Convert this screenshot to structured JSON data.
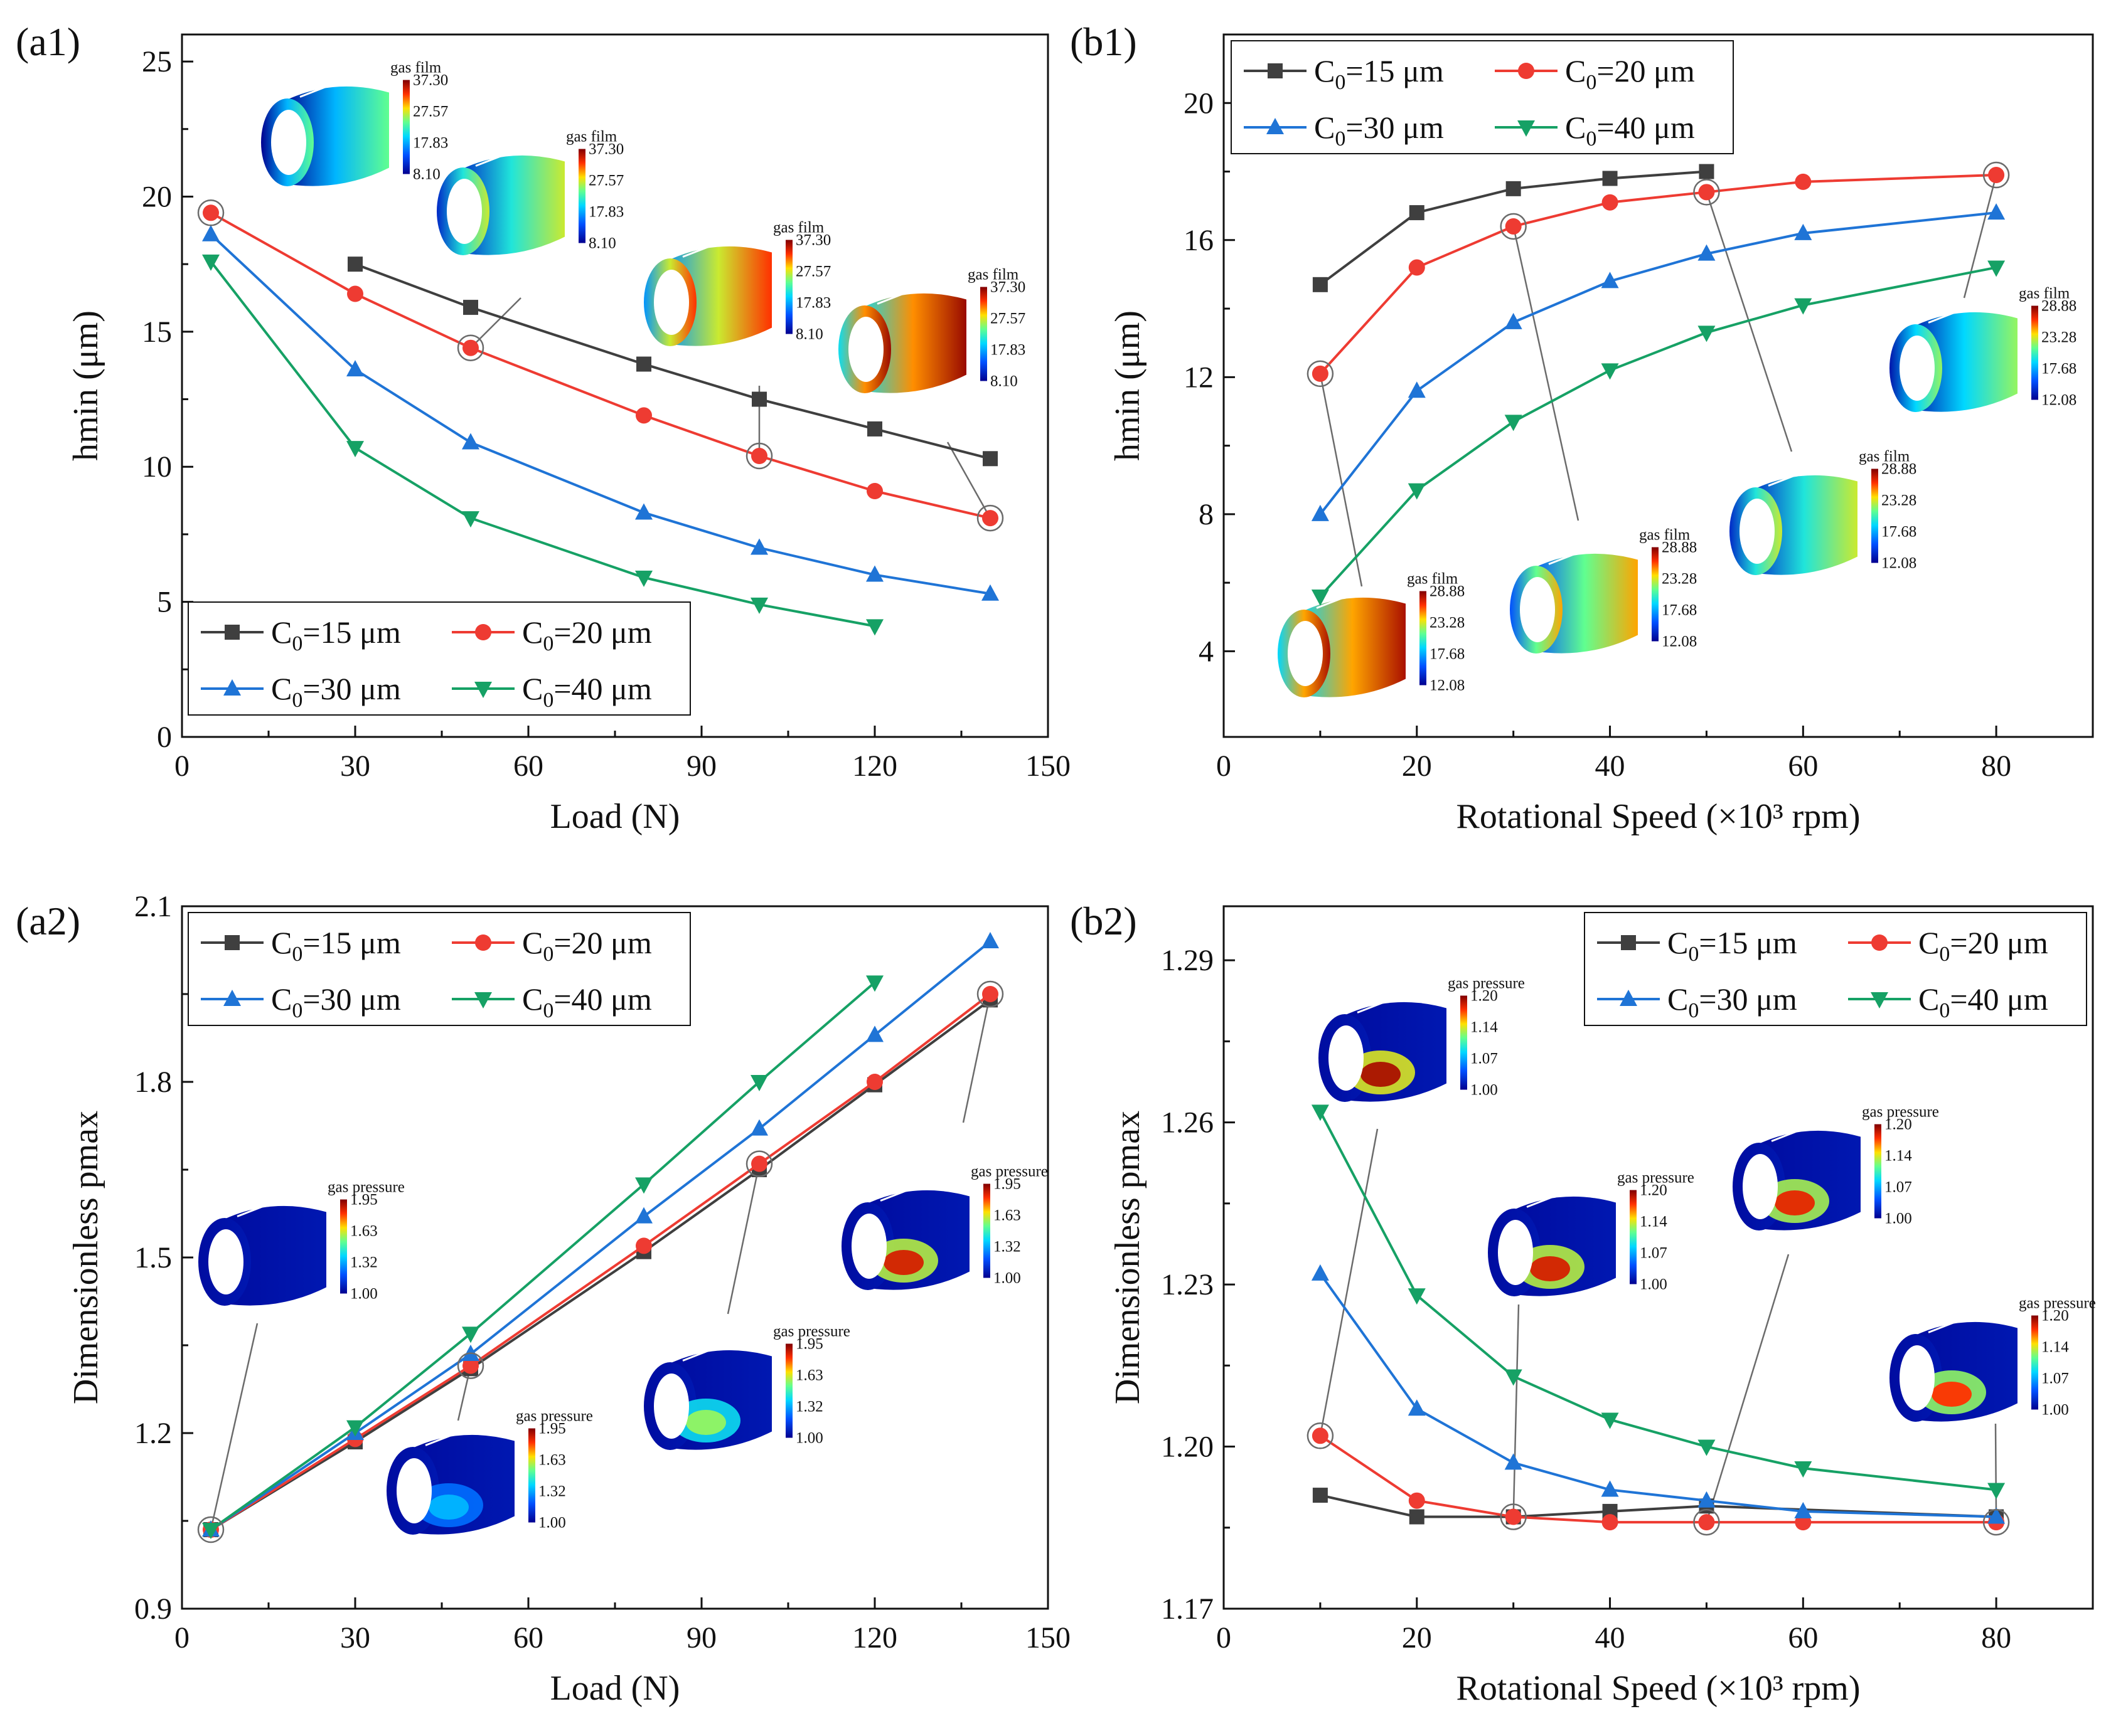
{
  "colors": {
    "C15": "#3f3f3f",
    "C20": "#ee3b32",
    "C30": "#1f74d6",
    "C40": "#16a165",
    "axis": "#111111",
    "leader": "#6b6b6b"
  },
  "legend_entries": [
    {
      "key": "C15",
      "prefix": "C",
      "sub": "0",
      "suffix": "=15 μm",
      "marker": "square"
    },
    {
      "key": "C20",
      "prefix": "C",
      "sub": "0",
      "suffix": "=20 μm",
      "marker": "circle"
    },
    {
      "key": "C30",
      "prefix": "C",
      "sub": "0",
      "suffix": "=30 μm",
      "marker": "triangle-up"
    },
    {
      "key": "C40",
      "prefix": "C",
      "sub": "0",
      "suffix": "=40 μm",
      "marker": "triangle-down"
    }
  ],
  "chart_data": [
    {
      "id": "a1",
      "panel_label": "(a1)",
      "type": "line",
      "xlabel": "Load (N)",
      "ylabel": "hmin (μm)",
      "xlim": [
        0,
        150
      ],
      "ylim": [
        0,
        26
      ],
      "xticks": [
        0,
        30,
        60,
        90,
        120,
        150
      ],
      "yticks": [
        0,
        5,
        10,
        15,
        20,
        25
      ],
      "legend_position": "bottom-left",
      "series": [
        {
          "key": "C15",
          "x": [
            30,
            50,
            80,
            100,
            120,
            140
          ],
          "y": [
            17.5,
            15.9,
            13.8,
            12.5,
            11.4,
            10.3
          ]
        },
        {
          "key": "C20",
          "x": [
            5,
            30,
            50,
            80,
            100,
            120,
            140
          ],
          "y": [
            19.4,
            16.4,
            14.4,
            11.9,
            10.4,
            9.1,
            8.1
          ]
        },
        {
          "key": "C30",
          "x": [
            5,
            30,
            50,
            80,
            100,
            120,
            140
          ],
          "y": [
            18.6,
            13.6,
            10.9,
            8.3,
            7.0,
            6.0,
            5.3
          ]
        },
        {
          "key": "C40",
          "x": [
            5,
            30,
            50,
            80,
            100,
            120
          ],
          "y": [
            17.6,
            10.7,
            8.1,
            5.9,
            4.9,
            4.1
          ]
        }
      ],
      "insets": [
        {
          "title": "gas film",
          "ticks": [
            "37.30",
            "27.57",
            "17.83",
            "8.10"
          ],
          "point": {
            "x": 5,
            "y": 19.4
          },
          "level": 0.55
        },
        {
          "title": "gas film",
          "ticks": [
            "37.30",
            "27.57",
            "17.83",
            "8.10"
          ],
          "point": {
            "x": 50,
            "y": 14.4
          },
          "level": 0.65
        },
        {
          "title": "gas film",
          "ticks": [
            "37.30",
            "27.57",
            "17.83",
            "8.10"
          ],
          "point": {
            "x": 100,
            "y": 10.4
          },
          "level": 0.85
        },
        {
          "title": "gas film",
          "ticks": [
            "37.30",
            "27.57",
            "17.83",
            "8.10"
          ],
          "point": {
            "x": 140,
            "y": 8.1
          },
          "level": 0.97
        }
      ]
    },
    {
      "id": "b1",
      "panel_label": "(b1)",
      "type": "line",
      "xlabel": "Rotational Speed (×10³ rpm)",
      "ylabel": "hmin (μm)",
      "xlim": [
        0,
        90
      ],
      "ylim": [
        1.5,
        22
      ],
      "xticks": [
        0,
        20,
        40,
        60,
        80
      ],
      "yticks": [
        4,
        8,
        12,
        16,
        20
      ],
      "legend_position": "top-left",
      "series": [
        {
          "key": "C15",
          "x": [
            10,
            20,
            30,
            40,
            50
          ],
          "y": [
            14.7,
            16.8,
            17.5,
            17.8,
            18.0
          ]
        },
        {
          "key": "C20",
          "x": [
            10,
            20,
            30,
            40,
            50,
            60,
            80
          ],
          "y": [
            12.1,
            15.2,
            16.4,
            17.1,
            17.4,
            17.7,
            17.9
          ]
        },
        {
          "key": "C30",
          "x": [
            10,
            20,
            30,
            40,
            50,
            60,
            80
          ],
          "y": [
            8.0,
            11.6,
            13.6,
            14.8,
            15.6,
            16.2,
            16.8
          ]
        },
        {
          "key": "C40",
          "x": [
            10,
            20,
            30,
            40,
            50,
            60,
            80
          ],
          "y": [
            5.6,
            8.7,
            10.7,
            12.2,
            13.3,
            14.1,
            15.2
          ]
        }
      ],
      "insets": [
        {
          "title": "gas film",
          "ticks": [
            "28.88",
            "23.28",
            "17.68",
            "12.08"
          ],
          "point": {
            "x": 10,
            "y": 12.1
          },
          "level": 0.95
        },
        {
          "title": "gas film",
          "ticks": [
            "28.88",
            "23.28",
            "17.68",
            "12.08"
          ],
          "point": {
            "x": 30,
            "y": 16.4
          },
          "level": 0.75
        },
        {
          "title": "gas film",
          "ticks": [
            "28.88",
            "23.28",
            "17.68",
            "12.08"
          ],
          "point": {
            "x": 50,
            "y": 17.4
          },
          "level": 0.65
        },
        {
          "title": "gas film",
          "ticks": [
            "28.88",
            "23.28",
            "17.68",
            "12.08"
          ],
          "point": {
            "x": 80,
            "y": 17.9
          },
          "level": 0.6
        }
      ]
    },
    {
      "id": "a2",
      "panel_label": "(a2)",
      "type": "line",
      "xlabel": "Load (N)",
      "ylabel": "Dimensionless pmax",
      "xlim": [
        0,
        150
      ],
      "ylim": [
        0.9,
        2.1
      ],
      "xticks": [
        0,
        30,
        60,
        90,
        120,
        150
      ],
      "yticks": [
        0.9,
        1.2,
        1.5,
        1.8,
        2.1
      ],
      "ytick_decimals": 1,
      "legend_position": "top-left",
      "series": [
        {
          "key": "C15",
          "x": [
            5,
            30,
            50,
            80,
            100,
            120,
            140
          ],
          "y": [
            1.035,
            1.185,
            1.31,
            1.51,
            1.65,
            1.795,
            1.94
          ]
        },
        {
          "key": "C20",
          "x": [
            5,
            30,
            50,
            80,
            100,
            120,
            140
          ],
          "y": [
            1.035,
            1.19,
            1.315,
            1.52,
            1.66,
            1.8,
            1.95
          ]
        },
        {
          "key": "C30",
          "x": [
            5,
            30,
            50,
            80,
            100,
            120,
            140
          ],
          "y": [
            1.035,
            1.2,
            1.335,
            1.57,
            1.72,
            1.88,
            2.04
          ]
        },
        {
          "key": "C40",
          "x": [
            5,
            30,
            50,
            80,
            100,
            120
          ],
          "y": [
            1.035,
            1.21,
            1.37,
            1.625,
            1.8,
            1.97
          ]
        }
      ],
      "insets": [
        {
          "title": "gas pressure",
          "ticks": [
            "1.95",
            "1.63",
            "1.32",
            "1.00"
          ],
          "point": {
            "x": 5,
            "y": 1.035
          },
          "level": 0.05
        },
        {
          "title": "gas pressure",
          "ticks": [
            "1.95",
            "1.63",
            "1.32",
            "1.00"
          ],
          "point": {
            "x": 50,
            "y": 1.315
          },
          "level": 0.35
        },
        {
          "title": "gas pressure",
          "ticks": [
            "1.95",
            "1.63",
            "1.32",
            "1.00"
          ],
          "point": {
            "x": 100,
            "y": 1.66
          },
          "level": 0.6
        },
        {
          "title": "gas pressure",
          "ticks": [
            "1.95",
            "1.63",
            "1.32",
            "1.00"
          ],
          "point": {
            "x": 140,
            "y": 1.95
          },
          "level": 0.9
        }
      ]
    },
    {
      "id": "b2",
      "panel_label": "(b2)",
      "type": "line",
      "xlabel": "Rotational Speed (×10³ rpm)",
      "ylabel": "Dimensionless pmax",
      "xlim": [
        0,
        90
      ],
      "ylim": [
        1.17,
        1.3
      ],
      "xticks": [
        0,
        20,
        40,
        60,
        80
      ],
      "yticks": [
        1.17,
        1.2,
        1.23,
        1.26,
        1.29
      ],
      "ytick_decimals": 2,
      "legend_position": "top-right",
      "series": [
        {
          "key": "C15",
          "x": [
            10,
            20,
            30,
            40,
            50,
            80
          ],
          "y": [
            1.191,
            1.187,
            1.187,
            1.188,
            1.189,
            1.187
          ]
        },
        {
          "key": "C20",
          "x": [
            10,
            20,
            30,
            40,
            50,
            60,
            80
          ],
          "y": [
            1.202,
            1.19,
            1.187,
            1.186,
            1.186,
            1.186,
            1.186
          ]
        },
        {
          "key": "C30",
          "x": [
            10,
            20,
            30,
            40,
            50,
            60,
            80
          ],
          "y": [
            1.232,
            1.207,
            1.197,
            1.192,
            1.19,
            1.188,
            1.187
          ]
        },
        {
          "key": "C40",
          "x": [
            10,
            20,
            30,
            40,
            50,
            60,
            80
          ],
          "y": [
            1.262,
            1.228,
            1.213,
            1.205,
            1.2,
            1.196,
            1.192
          ]
        }
      ],
      "insets": [
        {
          "title": "gas pressure",
          "ticks": [
            "1.20",
            "1.14",
            "1.07",
            "1.00"
          ],
          "point": {
            "x": 10,
            "y": 1.202
          },
          "level": 0.95
        },
        {
          "title": "gas pressure",
          "ticks": [
            "1.20",
            "1.14",
            "1.07",
            "1.00"
          ],
          "point": {
            "x": 30,
            "y": 1.187
          },
          "level": 0.9
        },
        {
          "title": "gas pressure",
          "ticks": [
            "1.20",
            "1.14",
            "1.07",
            "1.00"
          ],
          "point": {
            "x": 50,
            "y": 1.186
          },
          "level": 0.88
        },
        {
          "title": "gas pressure",
          "ticks": [
            "1.20",
            "1.14",
            "1.07",
            "1.00"
          ],
          "point": {
            "x": 80,
            "y": 1.186
          },
          "level": 0.85
        }
      ]
    }
  ]
}
